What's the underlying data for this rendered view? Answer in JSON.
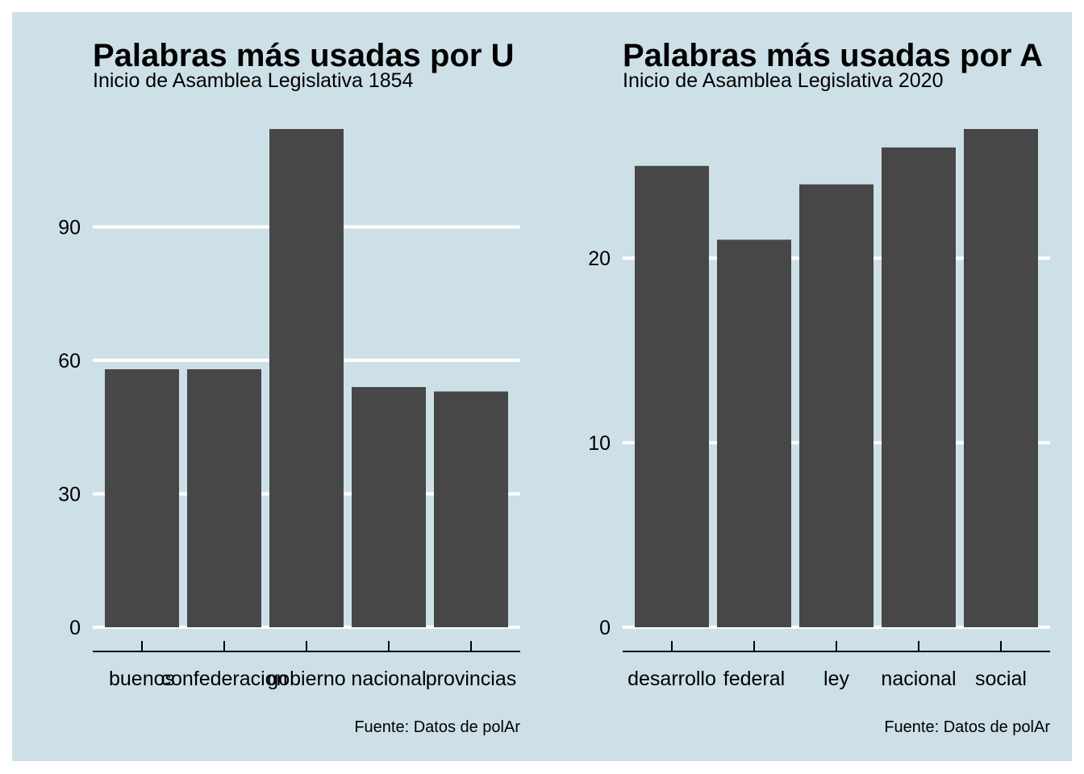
{
  "colors": {
    "background": "#cde0e8",
    "bar": "#474747",
    "grid": "#ffffff",
    "axis": "#000000"
  },
  "chart_data": [
    {
      "type": "bar",
      "title": "Palabras más usadas por U",
      "subtitle": "Inicio de Asamblea Legislativa 1854",
      "caption": "Fuente: Datos de polAr",
      "categories": [
        "buenos",
        "confederacion",
        "gobierno",
        "nacional",
        "provincias"
      ],
      "values": [
        58,
        58,
        112,
        54,
        53
      ],
      "ylim": [
        0,
        112
      ],
      "yticks": [
        0,
        30,
        60,
        90
      ],
      "grid": true,
      "xlabel": "",
      "ylabel": ""
    },
    {
      "type": "bar",
      "title": "Palabras más usadas por A",
      "subtitle": "Inicio de Asamblea Legislativa 2020",
      "caption": "Fuente: Datos de polAr",
      "categories": [
        "desarrollo",
        "federal",
        "ley",
        "nacional",
        "social"
      ],
      "values": [
        25,
        21,
        24,
        26,
        27
      ],
      "ylim": [
        0,
        27
      ],
      "yticks": [
        0,
        10,
        20
      ],
      "grid": true,
      "xlabel": "",
      "ylabel": ""
    }
  ]
}
